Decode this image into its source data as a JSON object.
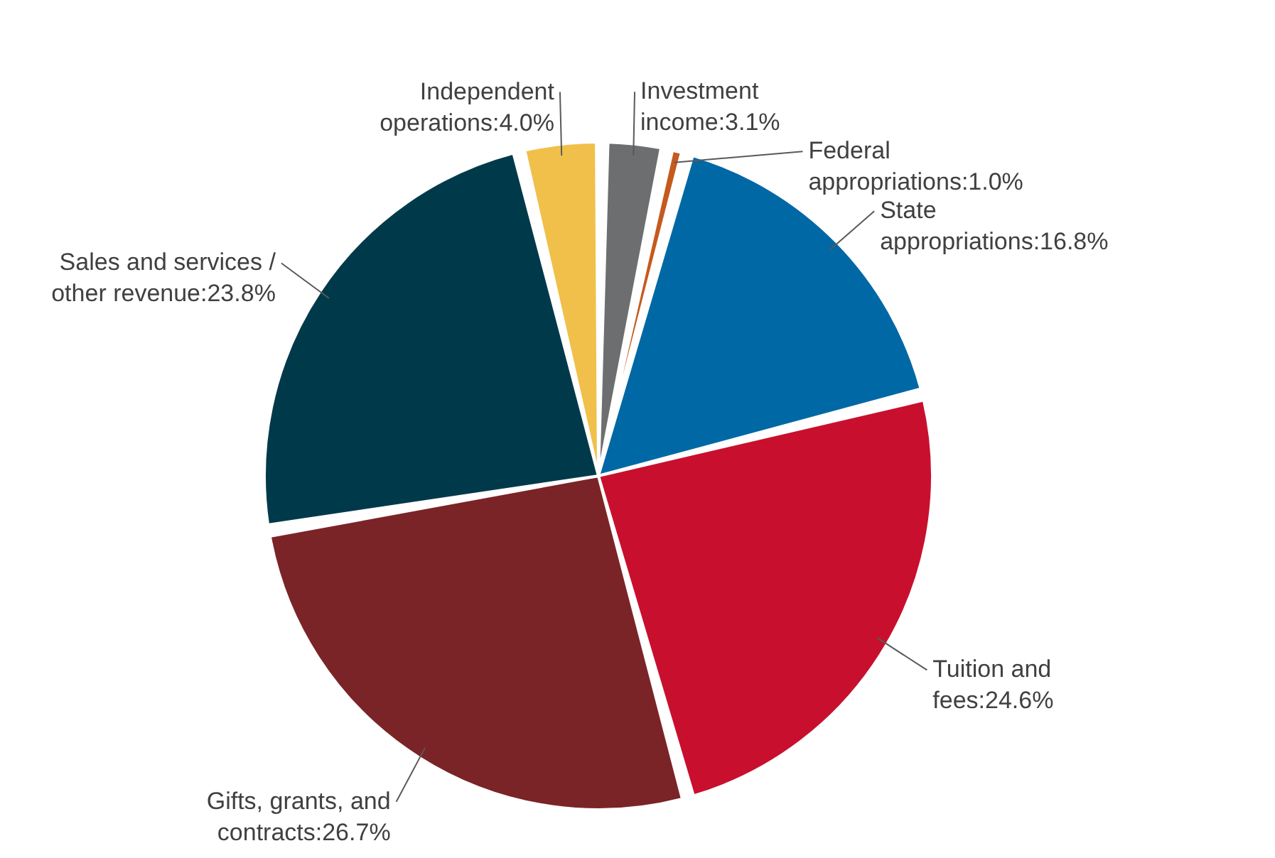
{
  "chart_data": {
    "type": "pie",
    "categories": [
      "Independent operations:4.0%",
      "Investment income:3.1%",
      "Federal appropriations:1.0%",
      "State appropriations:16.8%",
      "Tuition and fees:24.6%",
      "Gifts, grants, and contracts:26.7%",
      "Sales and services / other revenue:23.8%"
    ],
    "values": [
      4.0,
      3.1,
      1.0,
      16.8,
      24.6,
      26.7,
      23.8
    ],
    "colors": [
      "#f0c04a",
      "#6d6e70",
      "#c55a1e",
      "#0068a5",
      "#c8102e",
      "#7a2428",
      "#003a4a"
    ]
  }
}
